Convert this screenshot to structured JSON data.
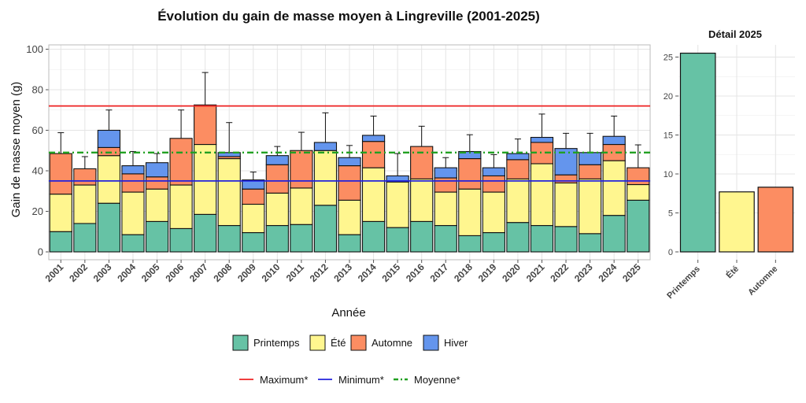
{
  "chart_data": [
    {
      "type": "bar",
      "stacked": true,
      "title": "Évolution du gain de masse moyen à Lingreville (2001-2025)",
      "xlabel": "Année",
      "ylabel": "Gain de masse moyen (g)",
      "ylim": [
        0,
        100
      ],
      "yticks": [
        0,
        20,
        40,
        60,
        80,
        100
      ],
      "categories": [
        "2001",
        "2002",
        "2003",
        "2004",
        "2005",
        "2006",
        "2007",
        "2008",
        "2009",
        "2010",
        "2011",
        "2012",
        "2013",
        "2014",
        "2015",
        "2016",
        "2017",
        "2018",
        "2019",
        "2020",
        "2021",
        "2022",
        "2023",
        "2024",
        "2025"
      ],
      "series": [
        {
          "name": "Printemps",
          "color": "#66C2A5",
          "values": [
            10,
            14,
            24,
            8.5,
            15,
            11.5,
            18.5,
            13,
            9.5,
            13,
            13.5,
            23,
            8.5,
            15,
            12,
            15,
            13,
            8,
            9.5,
            14.5,
            13,
            12.5,
            9,
            18,
            25.5
          ]
        },
        {
          "name": "Été",
          "color": "#FFF68F",
          "values": [
            18.5,
            19,
            23.5,
            21,
            16,
            21.5,
            34.5,
            33,
            14,
            16,
            18,
            27,
            17,
            26.5,
            22.5,
            21,
            16.5,
            23,
            20,
            21.5,
            30.5,
            21.5,
            27,
            27,
            7.7
          ]
        },
        {
          "name": "Automne",
          "color": "#FC8D62",
          "values": [
            20,
            8,
            4,
            9,
            6,
            23,
            19.5,
            1,
            7.5,
            14,
            18.5,
            0,
            17,
            13,
            0,
            16,
            7,
            15,
            8,
            9.5,
            10.5,
            4,
            7,
            8,
            8.3
          ]
        },
        {
          "name": "Hiver",
          "color": "#6495ED",
          "values": [
            0,
            0,
            8.5,
            4,
            7,
            0,
            0,
            2,
            4.5,
            4.5,
            0,
            4,
            4,
            3,
            3,
            0,
            5,
            3.5,
            4,
            3,
            2.5,
            13,
            6,
            4,
            0
          ]
        }
      ],
      "error_upper": [
        58.8,
        47,
        70,
        49.5,
        48.5,
        70,
        88.5,
        63.8,
        39.4,
        52,
        59,
        68.6,
        52.5,
        67,
        48.5,
        62,
        46.5,
        57.8,
        48,
        55.7,
        68,
        58.5,
        58.5,
        67,
        52.8
      ],
      "reference_lines": [
        {
          "name": "Maximum*",
          "value": 72,
          "color": "#EE2222",
          "style": "solid"
        },
        {
          "name": "Minimum*",
          "value": 35,
          "color": "#2222DD",
          "style": "solid"
        },
        {
          "name": "Moyenne*",
          "value": 49,
          "color": "#22A022",
          "style": "dotdash"
        }
      ]
    },
    {
      "type": "bar",
      "title": "Détail 2025",
      "categories": [
        "Printemps",
        "Été",
        "Automne"
      ],
      "values": [
        25.5,
        7.7,
        8.3
      ],
      "colors": [
        "#66C2A5",
        "#FFF68F",
        "#FC8D62"
      ],
      "ylim": [
        0,
        26.5
      ],
      "yticks": [
        0,
        5,
        10,
        15,
        20,
        25
      ]
    }
  ]
}
